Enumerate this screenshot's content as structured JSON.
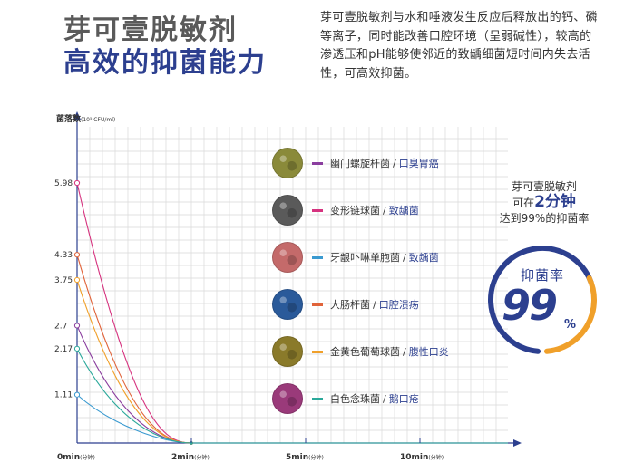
{
  "header": {
    "title_line1": "芽可壹脱敏剂",
    "title_line2": "高效的抑菌能力",
    "intro": "芽可壹脱敏剂与水和唾液发生反应后释放出的钙、磷等离子，同时能改善口腔环境（呈弱碱性），较高的渗透压和pH能够使邻近的致龋细菌短时间内失去活性，可高效抑菌。"
  },
  "chart_data": {
    "type": "line",
    "ylabel": "菌落数",
    "ylabel_unit": "(10⁵ CFU/ml)",
    "y_ticks": [
      "5.98",
      "4.33",
      "3.75",
      "2.7",
      "2.17",
      "1.11"
    ],
    "x_ticks": [
      {
        "value": 0,
        "label": "0min",
        "unit": "(分钟)"
      },
      {
        "value": 2,
        "label": "2min",
        "unit": "(分钟)"
      },
      {
        "value": 5,
        "label": "5min",
        "unit": "(分钟)"
      },
      {
        "value": 10,
        "label": "10min",
        "unit": "(分钟)"
      }
    ],
    "x": [
      0,
      2,
      5,
      10
    ],
    "series": [
      {
        "name": "幽门螺旋杆菌",
        "disease": "口臭胃癌",
        "color": "#8a3d9e",
        "micro_color": "#8a8a3a",
        "values": [
          2.7,
          0,
          0,
          0
        ]
      },
      {
        "name": "变形链球菌",
        "disease": "致龋菌",
        "color": "#d6337f",
        "micro_color": "#5a5a5a",
        "values": [
          5.98,
          0,
          0,
          0
        ]
      },
      {
        "name": "牙龈卟啉单胞菌",
        "disease": "致龋菌",
        "color": "#3a9ad0",
        "micro_color": "#c46a6a",
        "values": [
          1.11,
          0,
          0,
          0
        ]
      },
      {
        "name": "大肠杆菌",
        "disease": "口腔溃疡",
        "color": "#e0633a",
        "micro_color": "#2a5a9a",
        "values": [
          4.33,
          0,
          0,
          0
        ]
      },
      {
        "name": "金黄色葡萄球菌",
        "disease": "腹性口炎",
        "color": "#f0a02a",
        "micro_color": "#8a7a2a",
        "values": [
          3.75,
          0,
          0,
          0
        ]
      },
      {
        "name": "白色念珠菌",
        "disease": "鹅口疮",
        "color": "#2aa89a",
        "micro_color": "#9a3a7a",
        "values": [
          2.17,
          0,
          0,
          0
        ]
      }
    ]
  },
  "callout": {
    "line1": "芽可壹脱敏剂",
    "line2_prefix": "可在",
    "line2_big": "2分钟",
    "line3": "达到99%的抑菌率"
  },
  "rate": {
    "label": "抑菌率",
    "value": "99",
    "percent": "%",
    "ring_colors": [
      "#2c3f8f",
      "#f0a02a"
    ]
  },
  "separator": "/"
}
